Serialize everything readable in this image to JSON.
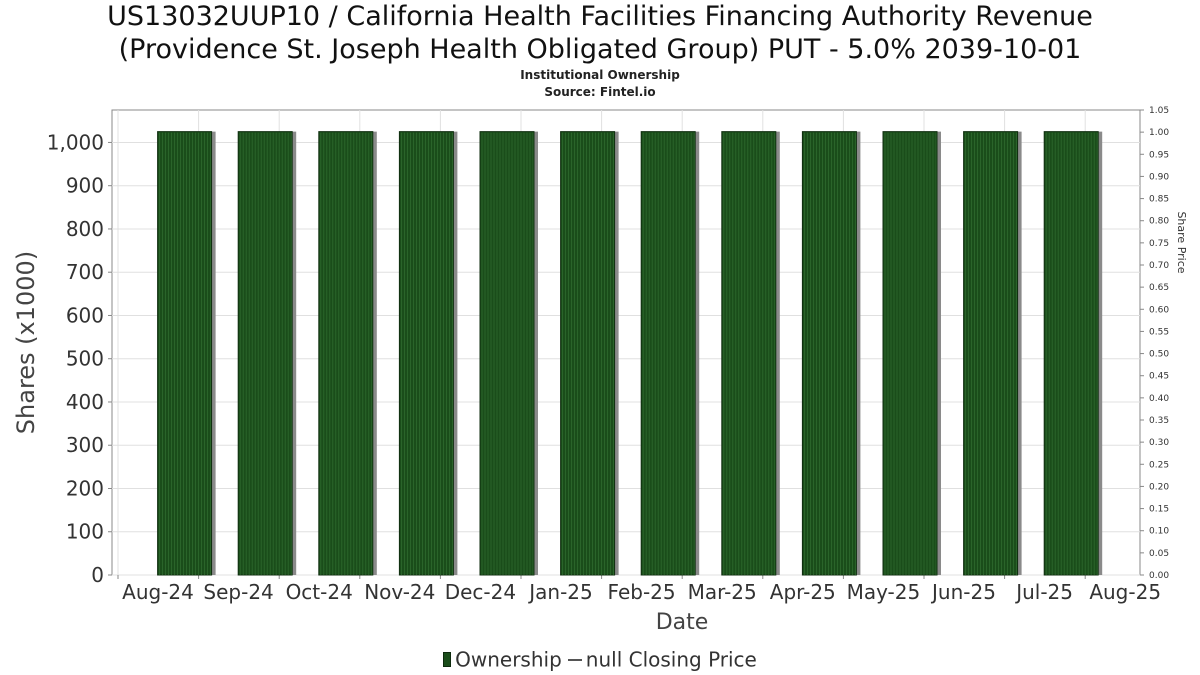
{
  "title_line1": "US13032UUP10 / California Health Facilities Financing Authority Revenue",
  "title_line2": "(Providence St. Joseph Health Obligated Group) PUT - 5.0% 2039-10-01",
  "subtitle_line1": "Institutional Ownership",
  "subtitle_line2": "Source: Fintel.io",
  "legend": {
    "ownership": "Ownership",
    "price": "null Closing Price"
  },
  "colors": {
    "bar": "#1a4d1a",
    "bar_stripe": "#2f6b2f",
    "bar_shadow": "#8a8a8a",
    "grid": "#e0e0e0",
    "axis": "#888888"
  },
  "chart_data": {
    "type": "bar",
    "xlabel": "Date",
    "ylabel": "Shares (x1000)",
    "y2label": "Share Price",
    "x_tick_labels": [
      "Aug-24",
      "Sep-24",
      "Oct-24",
      "Nov-24",
      "Dec-24",
      "Jan-25",
      "Feb-25",
      "Mar-25",
      "Apr-25",
      "May-25",
      "Jun-25",
      "Jul-25",
      "Aug-25"
    ],
    "categories": [
      "Sep-24",
      "Oct-24",
      "Nov-24",
      "Dec-24",
      "Jan-25",
      "Feb-25",
      "Mar-25",
      "Apr-25",
      "May-25",
      "Jun-25",
      "Jul-25",
      "Aug-25"
    ],
    "series": [
      {
        "name": "Ownership",
        "values": [
          1025,
          1025,
          1025,
          1025,
          1025,
          1025,
          1025,
          1025,
          1025,
          1025,
          1025,
          1025
        ]
      }
    ],
    "ylim": [
      0,
      1075
    ],
    "yticks": [
      0,
      100,
      200,
      300,
      400,
      500,
      600,
      700,
      800,
      900,
      1000
    ],
    "ytick_labels": [
      "0",
      "100",
      "200",
      "300",
      "400",
      "500",
      "600",
      "700",
      "800",
      "900",
      "1,000"
    ],
    "y2lim": [
      0,
      1.05
    ],
    "y2ticks": [
      "0.00",
      "0.05",
      "0.10",
      "0.15",
      "0.20",
      "0.25",
      "0.30",
      "0.35",
      "0.40",
      "0.45",
      "0.50",
      "0.55",
      "0.60",
      "0.65",
      "0.70",
      "0.75",
      "0.80",
      "0.85",
      "0.90",
      "0.95",
      "1.00",
      "1.05"
    ],
    "grid": true,
    "legend_position": "bottom"
  }
}
